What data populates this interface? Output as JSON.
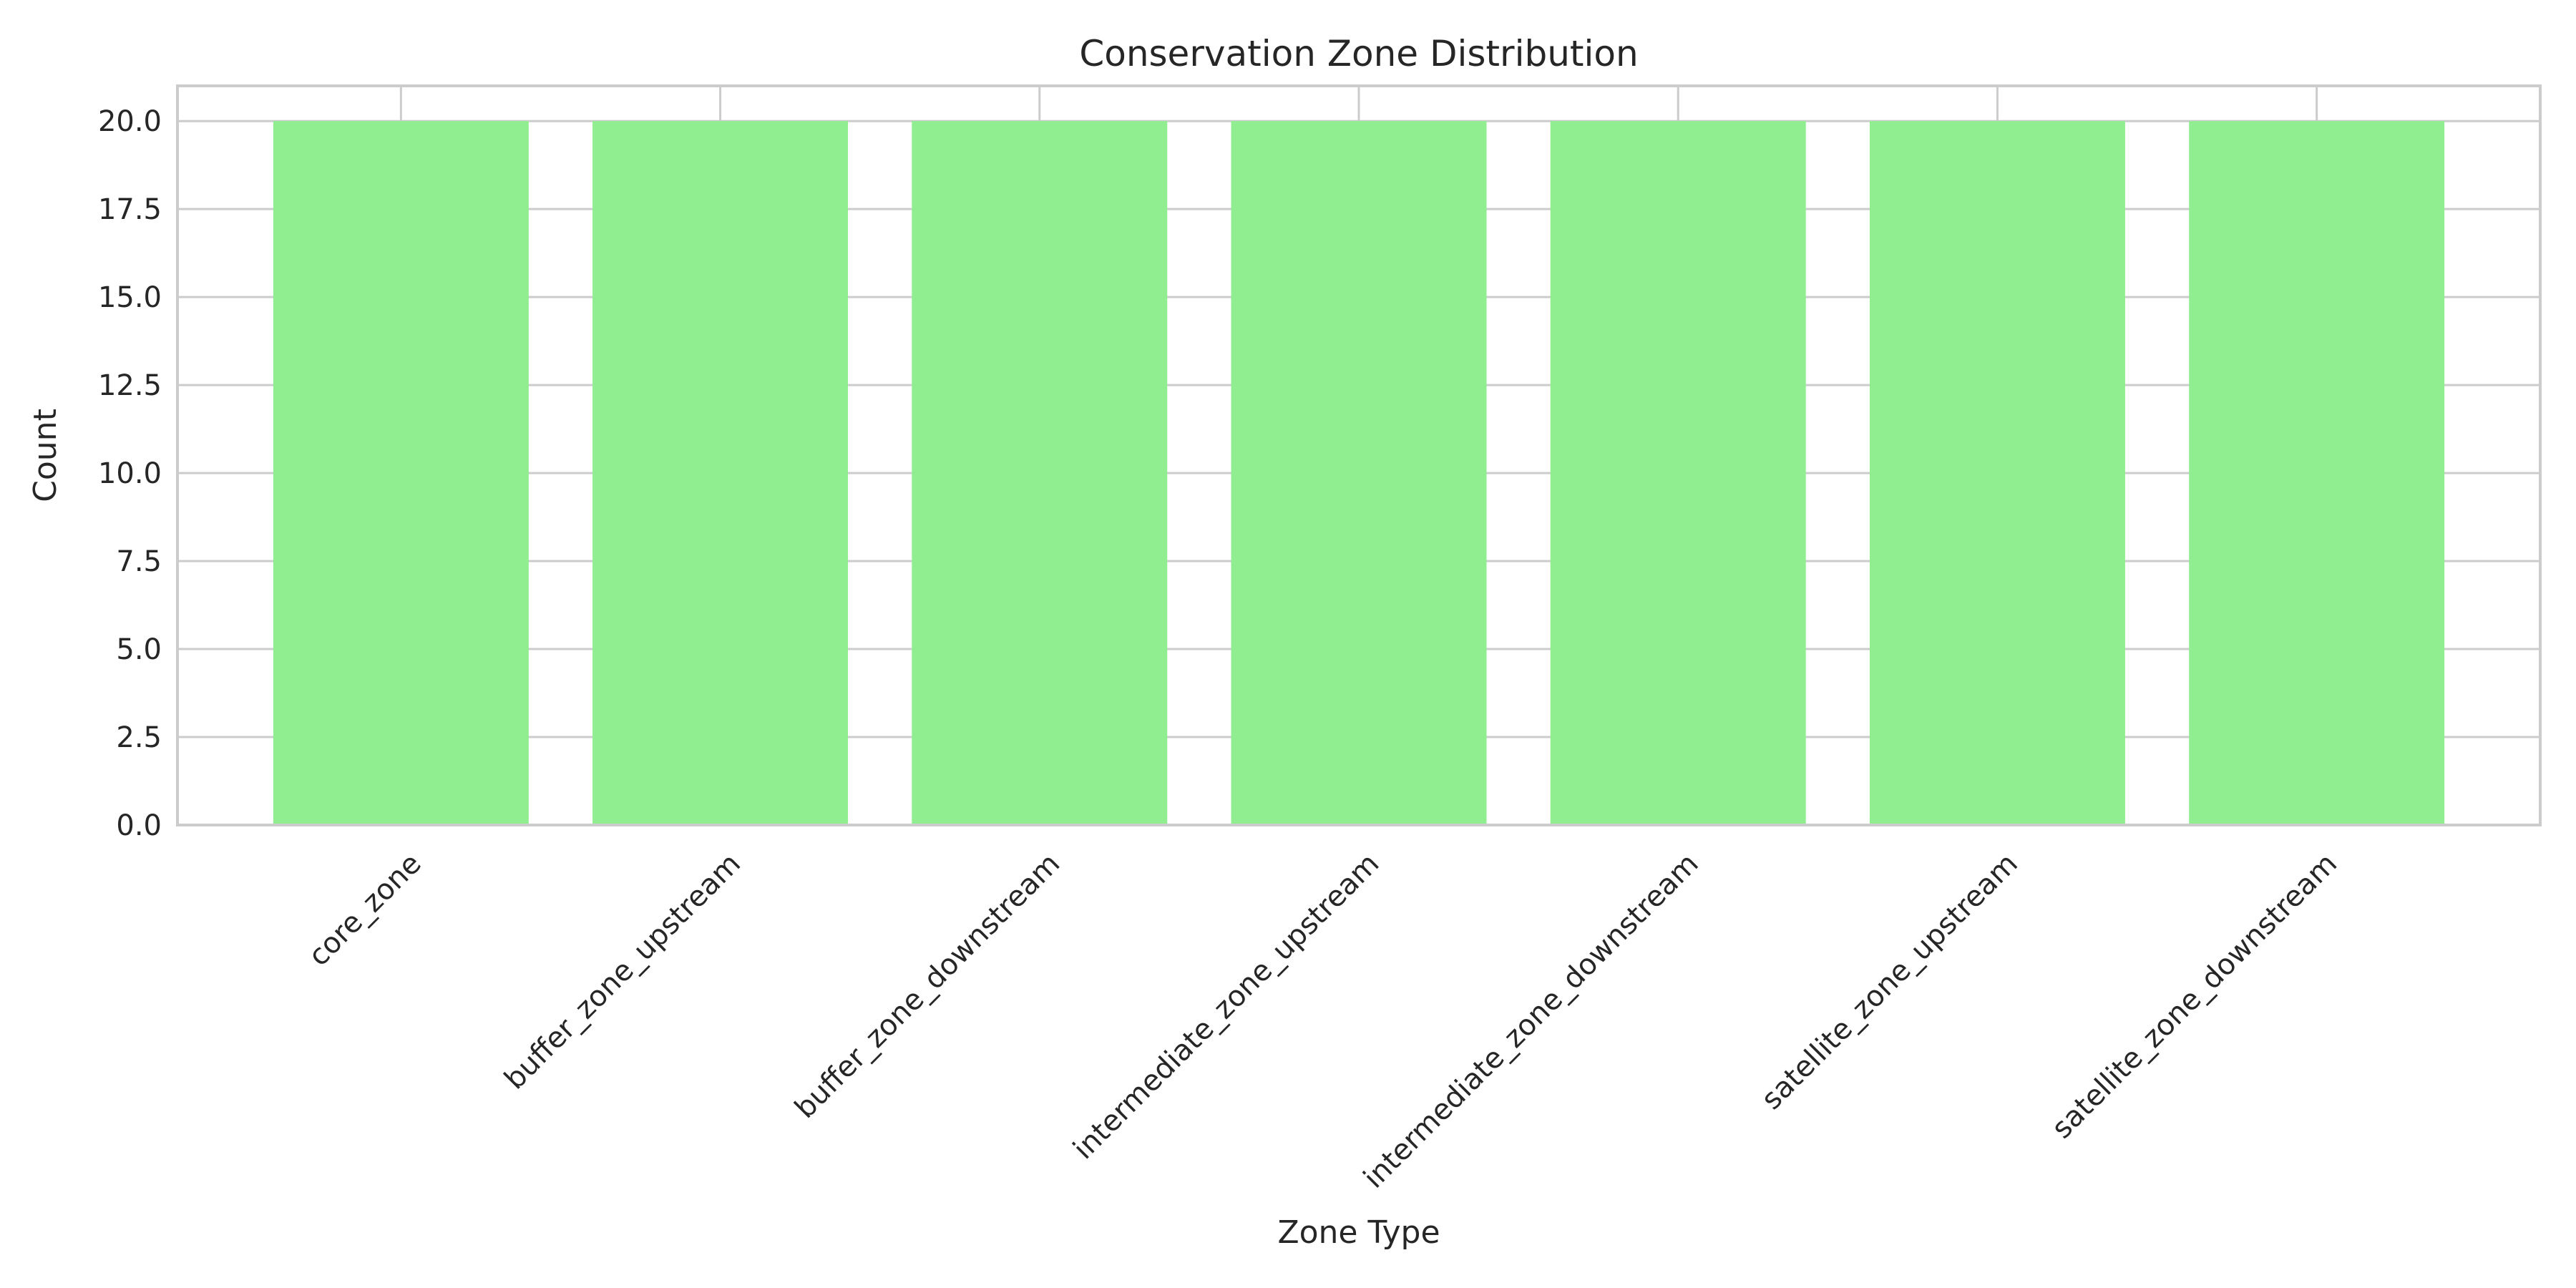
{
  "chart_data": {
    "type": "bar",
    "title": "Conservation Zone Distribution",
    "xlabel": "Zone Type",
    "ylabel": "Count",
    "categories": [
      "core_zone",
      "buffer_zone_upstream",
      "buffer_zone_downstream",
      "intermediate_zone_upstream",
      "intermediate_zone_downstream",
      "satellite_zone_upstream",
      "satellite_zone_downstream"
    ],
    "values": [
      20,
      20,
      20,
      20,
      20,
      20,
      20
    ],
    "ylim": [
      0,
      21
    ],
    "yticks": [
      "0.0",
      "2.5",
      "5.0",
      "7.5",
      "10.0",
      "12.5",
      "15.0",
      "17.5",
      "20.0"
    ],
    "grid": true,
    "bar_color": "#90ee90",
    "background_color": "#ffffff",
    "grid_color": "#cccccc",
    "text_color": "#262626"
  }
}
